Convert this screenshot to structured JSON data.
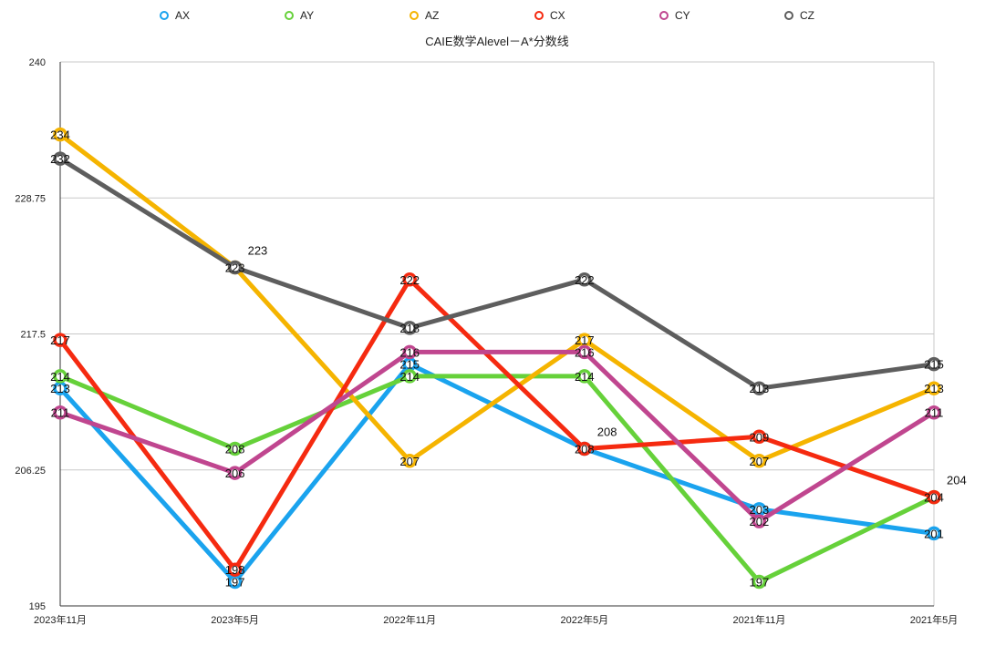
{
  "chart_data": {
    "type": "line",
    "title": "CAIE数学Alevel－A*分数线",
    "xlabel": "",
    "ylabel": "",
    "categories": [
      "2023年11月",
      "2023年5月",
      "2022年11月",
      "2022年5月",
      "2021年11月",
      "2021年5月"
    ],
    "ylim": [
      195,
      240
    ],
    "yticks": [
      "195",
      "206.25",
      "217.5",
      "228.75",
      "240"
    ],
    "grid": true,
    "legend_position": "top",
    "series": [
      {
        "name": "AX",
        "color": "#1aa3ee",
        "values": [
          213,
          197,
          215,
          208,
          203,
          201
        ]
      },
      {
        "name": "AY",
        "color": "#66d13a",
        "values": [
          214,
          208,
          214,
          214,
          197,
          204
        ]
      },
      {
        "name": "AZ",
        "color": "#f5b400",
        "values": [
          234,
          223,
          207,
          217,
          207,
          213
        ]
      },
      {
        "name": "CX",
        "color": "#f52a10",
        "values": [
          217,
          198,
          222,
          208,
          209,
          204
        ]
      },
      {
        "name": "CY",
        "color": "#c0468f",
        "values": [
          211,
          206,
          216,
          216,
          202,
          211
        ]
      },
      {
        "name": "CZ",
        "color": "#5e5e5e",
        "values": [
          232,
          223,
          218,
          222,
          213,
          215
        ]
      }
    ]
  }
}
